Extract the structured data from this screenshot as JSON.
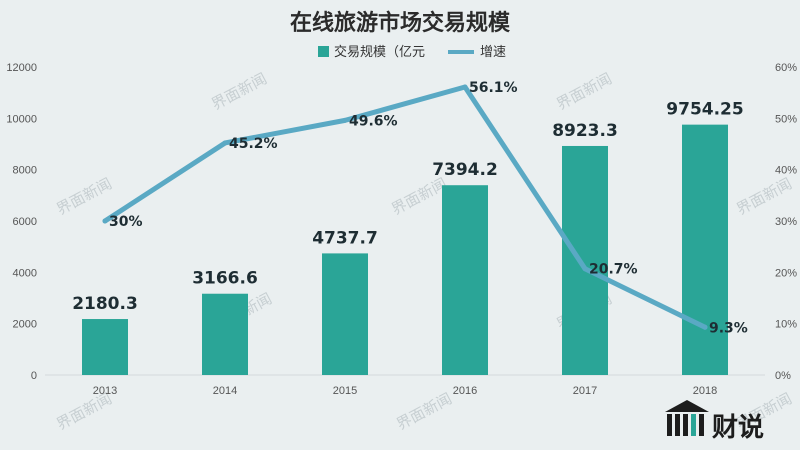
{
  "chart_data": {
    "type": "bar",
    "title": "在线旅游市场交易规模",
    "categories": [
      "2013",
      "2014",
      "2015",
      "2016",
      "2017",
      "2018"
    ],
    "series": [
      {
        "name": "交易规模（亿元",
        "type": "bar",
        "axis": "left",
        "values": [
          2180.3,
          3166.6,
          4737.7,
          7394.2,
          8923.3,
          9754.25
        ],
        "labels": [
          "2180.3",
          "3166.6",
          "4737.7",
          "7394.2",
          "8923.3",
          "9754.25"
        ],
        "color": "#2aa597"
      },
      {
        "name": "增速",
        "type": "line",
        "axis": "right",
        "values": [
          30,
          45.2,
          49.6,
          56.1,
          20.7,
          9.3
        ],
        "labels": [
          "30%",
          "45.2%",
          "49.6%",
          "56.1%",
          "20.7%",
          "9.3%"
        ],
        "color": "#5aa9c4"
      }
    ],
    "ylim": [
      0,
      12000
    ],
    "yticks": [
      "0",
      "2000",
      "4000",
      "6000",
      "8000",
      "10000",
      "12000"
    ],
    "y2lim": [
      0,
      60
    ],
    "y2ticks": [
      "0%",
      "10%",
      "20%",
      "30%",
      "40%",
      "50%",
      "60%"
    ],
    "legend_position": "top-center",
    "grid": false
  },
  "branding": {
    "watermark": "界面新闻",
    "logo_text": "财说"
  },
  "colors": {
    "background": "#eaeff0",
    "bar": "#2aa597",
    "line": "#5aa9c4"
  }
}
